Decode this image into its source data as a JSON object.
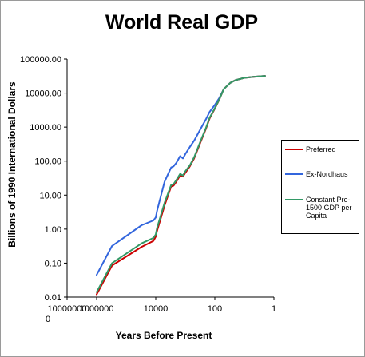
{
  "chart_data": {
    "type": "line",
    "title": "World Real GDP",
    "xlabel": "Years Before Present",
    "ylabel": "Billions of 1990 International Dollars",
    "x_scale": "log-reversed",
    "y_scale": "log",
    "xlim": [
      10000000,
      1
    ],
    "ylim": [
      0.01,
      100000
    ],
    "x_ticks": [
      "10000000\n0",
      "1000000",
      "10000",
      "100",
      "1"
    ],
    "y_ticks": [
      "100000.00",
      "10000.00",
      "1000.00",
      "100.00",
      "10.00",
      "1.00",
      "0.10",
      "0.01"
    ],
    "grid": false,
    "legend_position": "right",
    "series": [
      {
        "name": "Preferred",
        "color": "#cc0000",
        "x": [
          1000000,
          300000,
          30000,
          12000,
          10000,
          9000,
          5000,
          3000,
          2500,
          2000,
          1500,
          1200,
          1000,
          700,
          500,
          300,
          200,
          150,
          100,
          70,
          50,
          30,
          20,
          10,
          5,
          2
        ],
        "y": [
          0.012,
          0.085,
          0.3,
          0.45,
          0.6,
          0.9,
          5,
          18,
          19,
          25,
          38,
          35,
          45,
          70,
          120,
          370,
          900,
          1800,
          3500,
          6500,
          13000,
          20000,
          24000,
          28000,
          30000,
          32000
        ]
      },
      {
        "name": "Ex-Nordhaus",
        "color": "#3366dd",
        "x": [
          1000000,
          300000,
          30000,
          12000,
          10000,
          9000,
          5000,
          3000,
          2500,
          2000,
          1500,
          1200,
          1000,
          700,
          500,
          300,
          200,
          150,
          100,
          70,
          50,
          30,
          20,
          10,
          5,
          2
        ],
        "y": [
          0.045,
          0.32,
          1.3,
          1.8,
          2.2,
          3.5,
          25,
          65,
          70,
          90,
          140,
          120,
          160,
          260,
          400,
          900,
          1700,
          2800,
          4500,
          7200,
          13000,
          20000,
          24000,
          28000,
          30000,
          32000
        ]
      },
      {
        "name": "Constant Pre-1500 GDP per Capita",
        "color": "#339966",
        "x": [
          1000000,
          300000,
          30000,
          12000,
          10000,
          9000,
          5000,
          3000,
          2500,
          2000,
          1500,
          1200,
          1000,
          700,
          500,
          300,
          200,
          150,
          100,
          70,
          50,
          30,
          20,
          10,
          5,
          2
        ],
        "y": [
          0.014,
          0.1,
          0.38,
          0.55,
          0.7,
          1.1,
          6,
          20,
          21,
          28,
          42,
          38,
          50,
          75,
          130,
          400,
          950,
          1900,
          3600,
          6600,
          13000,
          20000,
          24000,
          28000,
          30000,
          32000
        ]
      }
    ]
  }
}
